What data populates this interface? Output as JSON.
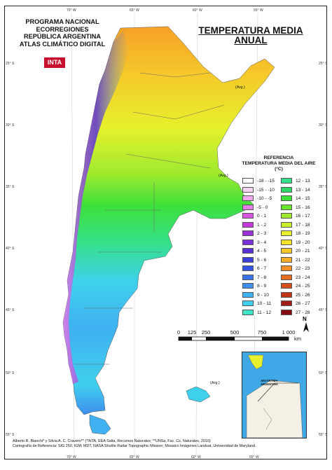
{
  "header": {
    "program_lines": [
      "PROGRAMA NACIONAL",
      "ECORREGIONES",
      "REPÚBLICA ARGENTINA",
      "ATLAS CLIMÁTICO DIGITAL"
    ],
    "title_lines": [
      "TEMPERATURA MEDIA",
      "ANUAL"
    ],
    "logo_text": "INTA"
  },
  "legend": {
    "title_lines": [
      "REFERENCIA",
      "TEMPERATURA MEDIA DEL AIRE",
      "(°C)"
    ],
    "classes_left": [
      {
        "label": "-18 - -15",
        "color": "#ffffff"
      },
      {
        "label": "-15 - -10",
        "color": "#f7d3f3"
      },
      {
        "label": "-10 - -5",
        "color": "#f0a8ec"
      },
      {
        "label": "-5 - 0",
        "color": "#e77ee6"
      },
      {
        "label": "0 - 1",
        "color": "#d955dd"
      },
      {
        "label": "1 - 2",
        "color": "#c437d9"
      },
      {
        "label": "2 - 3",
        "color": "#9a2fd6"
      },
      {
        "label": "3 - 4",
        "color": "#7a2fd8"
      },
      {
        "label": "4 - 5",
        "color": "#5b30d6"
      },
      {
        "label": "5 - 6",
        "color": "#3f3fe0"
      },
      {
        "label": "6 - 7",
        "color": "#3555e6"
      },
      {
        "label": "7 - 8",
        "color": "#3a73ea"
      },
      {
        "label": "8 - 9",
        "color": "#3f8fee"
      },
      {
        "label": "9 - 10",
        "color": "#3fb0f0"
      },
      {
        "label": "10 - 11",
        "color": "#3fd0ee"
      },
      {
        "label": "11 - 12",
        "color": "#3fe6c8"
      }
    ],
    "classes_right": [
      {
        "label": "12 - 13",
        "color": "#35e08c"
      },
      {
        "label": "13 - 14",
        "color": "#2ed866"
      },
      {
        "label": "14 - 15",
        "color": "#3ee03a"
      },
      {
        "label": "15 - 16",
        "color": "#6ee630"
      },
      {
        "label": "16 - 17",
        "color": "#9eea2e"
      },
      {
        "label": "17 - 18",
        "color": "#c8ee2c"
      },
      {
        "label": "18 - 19",
        "color": "#e6f02c"
      },
      {
        "label": "19 - 20",
        "color": "#f4e22c"
      },
      {
        "label": "20 - 21",
        "color": "#f6c82a"
      },
      {
        "label": "21 - 22",
        "color": "#f6ac28"
      },
      {
        "label": "22 - 23",
        "color": "#f48e26"
      },
      {
        "label": "23 - 24",
        "color": "#e66e22"
      },
      {
        "label": "24 - 25",
        "color": "#d6501e"
      },
      {
        "label": "25 - 26",
        "color": "#c0341a"
      },
      {
        "label": "26 - 27",
        "color": "#a41c16"
      },
      {
        "label": "27 - 28",
        "color": "#840a10"
      }
    ]
  },
  "scale_bar": {
    "labels": [
      "0",
      "125",
      "250",
      "500",
      "750",
      "1 000"
    ],
    "unit": "km",
    "north_label": "N"
  },
  "graticule": {
    "longitudes": [
      "70° W",
      "65° W",
      "60° W",
      "55° W"
    ],
    "latitudes": [
      "25° S",
      "30° S",
      "35° S",
      "40° S",
      "45° S",
      "50° S",
      "55° S"
    ]
  },
  "map_labels": {
    "arg_north": "(Arg.)",
    "arg_middle": "(Arg.)",
    "arg_malvinas": "(Arg.)",
    "inset_text_lines": [
      "ANTÁRTIDA",
      "ARGENTINA"
    ]
  },
  "credits": {
    "line1": "Alberto R. Bianchi* y Silvia A. C. Cravero** (*INTA, EEA Salta, Recursos Naturales; **UNSa, Fac. Cs. Naturales, 2010)",
    "line2": "Cartografía de Referencia: SIG 250, IGM; MDT, NASA Shuttle Radar Topographic Mission; Mosaico Imágenes Landsat, Universidad de Maryland."
  }
}
